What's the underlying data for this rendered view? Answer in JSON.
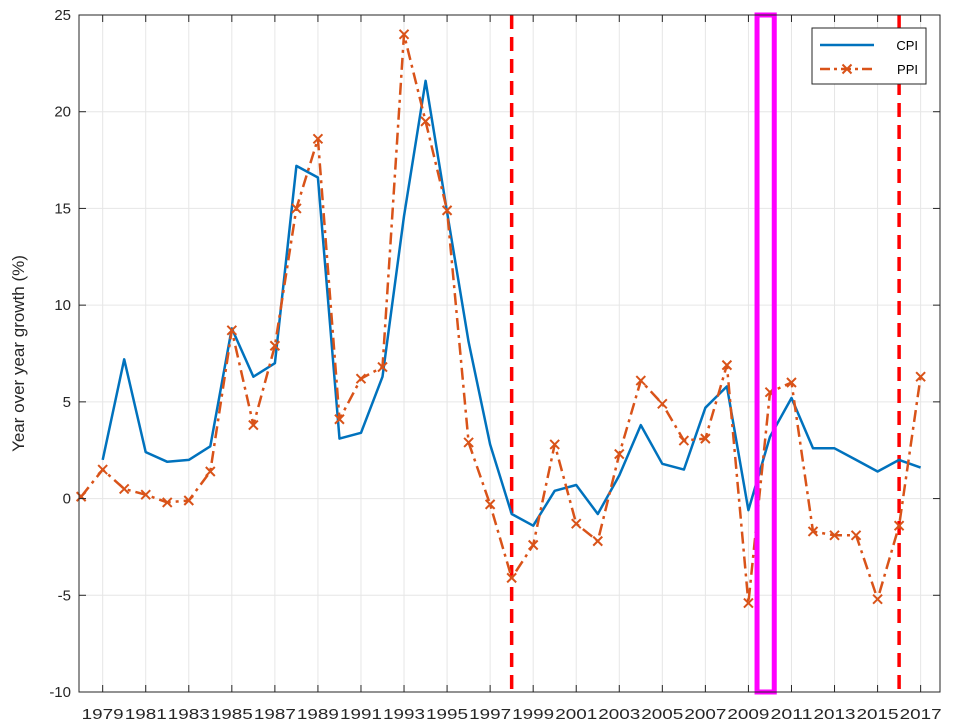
{
  "chart_data": {
    "type": "line",
    "ylabel": "Year over year growth (%)",
    "xlabel": "",
    "xlim": [
      1977.9,
      2017.9
    ],
    "ylim": [
      -10,
      25
    ],
    "xticks": [
      1979,
      1981,
      1983,
      1985,
      1987,
      1989,
      1991,
      1993,
      1995,
      1997,
      1999,
      2001,
      2003,
      2005,
      2007,
      2009,
      2011,
      2013,
      2015,
      2017
    ],
    "xtick_labels": [
      "1979",
      "1981",
      "1983",
      "1985",
      "1987",
      "1989",
      "1991",
      "1993",
      "1995",
      "1997",
      "1999",
      "2001",
      "2003",
      "2005",
      "2007",
      "2009",
      "2011",
      "2013",
      "2015",
      "2017"
    ],
    "yticks": [
      -10,
      -5,
      0,
      5,
      10,
      15,
      20,
      25
    ],
    "ytick_labels": [
      "-10",
      "-5",
      "0",
      "5",
      "10",
      "15",
      "20",
      "25"
    ],
    "grid": true,
    "legend_position": "top-right",
    "series": [
      {
        "name": "CPI",
        "color": "#0072BD",
        "style": "solid",
        "marker": "none",
        "x": [
          1979,
          1980,
          1981,
          1982,
          1983,
          1984,
          1985,
          1986,
          1987,
          1988,
          1989,
          1990,
          1991,
          1992,
          1993,
          1994,
          1995,
          1996,
          1997,
          1998,
          1999,
          2000,
          2001,
          2002,
          2003,
          2004,
          2005,
          2006,
          2007,
          2008,
          2009,
          2010,
          2011,
          2012,
          2013,
          2014,
          2015,
          2016,
          2017
        ],
        "y": [
          2.0,
          7.2,
          2.4,
          1.9,
          2.0,
          2.7,
          8.8,
          6.3,
          7.0,
          17.2,
          16.6,
          3.1,
          3.4,
          6.3,
          14.6,
          21.6,
          14.8,
          8.1,
          2.8,
          -0.8,
          -1.4,
          0.4,
          0.7,
          -0.8,
          1.2,
          3.8,
          1.8,
          1.5,
          4.7,
          5.8,
          -0.6,
          3.2,
          5.2,
          2.6,
          2.6,
          2.0,
          1.4,
          2.0,
          1.6
        ]
      },
      {
        "name": "PPI",
        "color": "#D95319",
        "style": "dash-dot",
        "marker": "x",
        "x": [
          1978,
          1979,
          1980,
          1981,
          1982,
          1983,
          1984,
          1985,
          1986,
          1987,
          1988,
          1989,
          1990,
          1991,
          1992,
          1993,
          1994,
          1995,
          1996,
          1997,
          1998,
          1999,
          2000,
          2001,
          2002,
          2003,
          2004,
          2005,
          2006,
          2007,
          2008,
          2009,
          2010,
          2011,
          2012,
          2013,
          2014,
          2015,
          2016,
          2017
        ],
        "y": [
          0.1,
          1.5,
          0.5,
          0.2,
          -0.2,
          -0.1,
          1.4,
          8.7,
          3.8,
          7.9,
          15.0,
          18.6,
          4.1,
          6.2,
          6.8,
          24.0,
          19.5,
          14.9,
          2.9,
          -0.3,
          -4.1,
          -2.4,
          2.8,
          -1.3,
          -2.2,
          2.3,
          6.1,
          4.9,
          3.0,
          3.1,
          6.9,
          -5.4,
          5.5,
          6.0,
          -1.7,
          -1.9,
          -1.9,
          -5.2,
          -1.4,
          6.3
        ]
      }
    ],
    "vertical_lines": [
      {
        "x": 1998,
        "color": "#FF0000",
        "style": "dashed"
      },
      {
        "x": 2016,
        "color": "#FF0000",
        "style": "dashed"
      }
    ],
    "highlight_box": {
      "x_from": 2009.4,
      "x_to": 2010.2,
      "y_from": -10,
      "y_to": 25,
      "color": "#FF00FF"
    }
  }
}
